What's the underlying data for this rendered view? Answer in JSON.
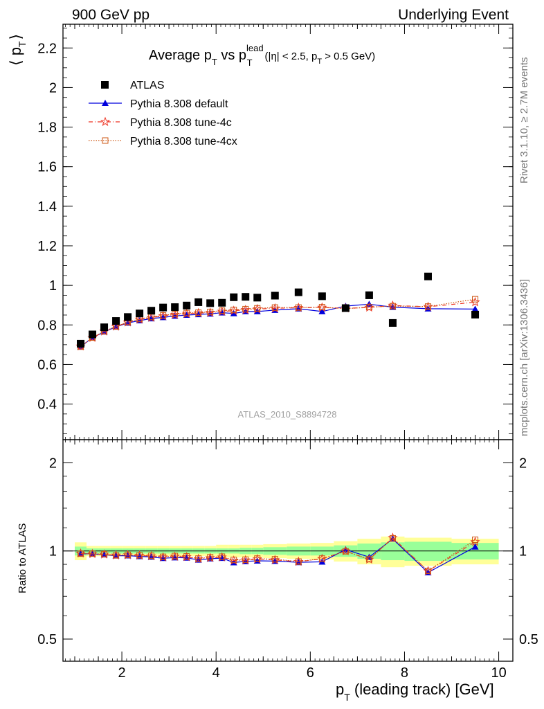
{
  "header": {
    "left": "900 GeV pp",
    "right": "Underlying Event"
  },
  "side": {
    "rivet": "Rivet 3.1.10, ≥ 2.7M events",
    "mcplots": "mcplots.cern.ch [arXiv:1306.3436]"
  },
  "title": {
    "main": "Average p",
    "main_sub": "T",
    "vs": " vs p",
    "vs_sup": "lead",
    "vs_sub": "T",
    "cut_a": "(|η| < 2.5, p",
    "cut_sub": "T",
    "cut_b": " > 0.5 GeV)"
  },
  "watermark": "ATLAS_2010_S8894728",
  "axes": {
    "ylabel_main_left": "⟨ p",
    "ylabel_main_sub": "T",
    "ylabel_main_right": "⟩",
    "ylabel_ratio": "Ratio to ATLAS",
    "xlabel_main": "p",
    "xlabel_sub": "T",
    "xlabel_rest": " (leading track) [GeV]"
  },
  "legend": {
    "placement": "top-left",
    "entries": [
      "ATLAS",
      "Pythia 8.308 default",
      "Pythia 8.308 tune-4c",
      "Pythia 8.308 tune-4cx"
    ]
  },
  "colors": {
    "data": "#000000",
    "default": "#0000dd",
    "tune4c": "#ee3322",
    "tune4cx": "#cc5511",
    "band_inner": "#99ff99",
    "band_outer": "#ffff99"
  },
  "chart_data": {
    "type": "scatter",
    "x": [
      1.125,
      1.375,
      1.625,
      1.875,
      2.125,
      2.375,
      2.625,
      2.875,
      3.125,
      3.375,
      3.625,
      3.875,
      4.125,
      4.375,
      4.625,
      4.875,
      5.25,
      5.75,
      6.25,
      6.75,
      7.25,
      7.75,
      8.5,
      9.5
    ],
    "x_edges": [
      1.0,
      1.25,
      1.5,
      1.75,
      2.0,
      2.25,
      2.5,
      2.75,
      3.0,
      3.25,
      3.5,
      3.75,
      4.0,
      4.25,
      4.5,
      4.75,
      5.0,
      5.5,
      6.0,
      6.5,
      7.0,
      7.5,
      8.0,
      9.0,
      10.0
    ],
    "xlim": [
      0.75,
      10.3
    ],
    "xticks": [
      2,
      4,
      6,
      8,
      10
    ],
    "main": {
      "ylim": [
        0.22,
        2.32
      ],
      "yticks": [
        0.4,
        0.6,
        0.8,
        1,
        1.2,
        1.4,
        1.6,
        1.8,
        2,
        2.2
      ],
      "series": [
        {
          "name": "ATLAS",
          "values": [
            0.705,
            0.752,
            0.788,
            0.82,
            0.84,
            0.858,
            0.872,
            0.888,
            0.89,
            0.898,
            0.915,
            0.91,
            0.912,
            0.94,
            0.942,
            0.938,
            0.948,
            0.965,
            0.945,
            0.885,
            0.95,
            0.81,
            1.045,
            0.852
          ]
        },
        {
          "name": "Pythia 8.308 default",
          "values": [
            0.69,
            0.735,
            0.765,
            0.79,
            0.81,
            0.822,
            0.832,
            0.838,
            0.845,
            0.85,
            0.853,
            0.856,
            0.862,
            0.858,
            0.868,
            0.868,
            0.875,
            0.882,
            0.868,
            0.895,
            0.905,
            0.89,
            0.882,
            0.88
          ]
        },
        {
          "name": "Pythia 8.308 tune-4c",
          "values": [
            0.692,
            0.735,
            0.767,
            0.792,
            0.813,
            0.828,
            0.837,
            0.845,
            0.852,
            0.857,
            0.86,
            0.862,
            0.868,
            0.872,
            0.876,
            0.88,
            0.884,
            0.887,
            0.888,
            0.884,
            0.888,
            0.898,
            0.892,
            0.915
          ]
        },
        {
          "name": "Pythia 8.308 tune-4cx",
          "values": [
            0.69,
            0.736,
            0.768,
            0.792,
            0.815,
            0.83,
            0.84,
            0.848,
            0.855,
            0.86,
            0.862,
            0.866,
            0.872,
            0.876,
            0.88,
            0.884,
            0.888,
            0.888,
            0.89,
            0.882,
            0.89,
            0.895,
            0.893,
            0.93
          ]
        }
      ]
    },
    "ratio": {
      "ylim": [
        0.42,
        2.4
      ],
      "scale": "log",
      "yticks": [
        0.5,
        1,
        2
      ],
      "band_inner_halfwidth": [
        0.035,
        0.02,
        0.02,
        0.02,
        0.02,
        0.02,
        0.02,
        0.02,
        0.02,
        0.02,
        0.02,
        0.02,
        0.02,
        0.02,
        0.025,
        0.025,
        0.03,
        0.035,
        0.035,
        0.045,
        0.06,
        0.07,
        0.075,
        0.065
      ],
      "band_outer_halfwidth": [
        0.07,
        0.04,
        0.04,
        0.04,
        0.04,
        0.04,
        0.04,
        0.04,
        0.04,
        0.04,
        0.04,
        0.04,
        0.05,
        0.05,
        0.05,
        0.05,
        0.055,
        0.06,
        0.065,
        0.08,
        0.1,
        0.12,
        0.11,
        0.1
      ],
      "series": [
        {
          "name": "Pythia 8.308 default",
          "values": [
            0.978,
            0.977,
            0.971,
            0.963,
            0.964,
            0.958,
            0.954,
            0.944,
            0.949,
            0.947,
            0.932,
            0.941,
            0.945,
            0.913,
            0.921,
            0.925,
            0.923,
            0.914,
            0.918,
            1.011,
            0.953,
            1.099,
            0.844,
            1.033
          ]
        },
        {
          "name": "Pythia 8.308 tune-4c",
          "values": [
            0.981,
            0.977,
            0.973,
            0.966,
            0.968,
            0.965,
            0.96,
            0.952,
            0.957,
            0.954,
            0.94,
            0.947,
            0.952,
            0.928,
            0.93,
            0.938,
            0.932,
            0.919,
            0.94,
            0.999,
            0.935,
            1.109,
            0.854,
            1.074
          ]
        },
        {
          "name": "Pythia 8.308 tune-4cx",
          "values": [
            0.979,
            0.979,
            0.975,
            0.966,
            0.97,
            0.967,
            0.963,
            0.955,
            0.961,
            0.958,
            0.942,
            0.952,
            0.956,
            0.932,
            0.934,
            0.942,
            0.937,
            0.92,
            0.942,
            0.997,
            0.937,
            1.105,
            0.855,
            1.092
          ]
        }
      ]
    }
  }
}
